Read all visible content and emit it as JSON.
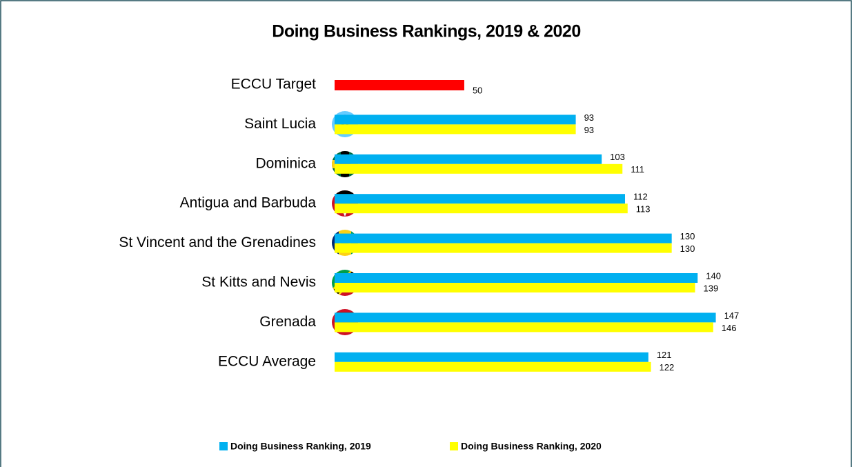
{
  "chart_data": {
    "type": "hbar",
    "title": "Doing Business Rankings, 2019 & 2020",
    "categories": [
      "ECCU Target",
      "Saint Lucia",
      "Dominica",
      "Antigua and Barbuda",
      "St Vincent and the Grenadines",
      "St Kitts and Nevis",
      "Grenada",
      "ECCU Average"
    ],
    "series": [
      {
        "name": "Doing Business Ranking, 2019",
        "color": "#00b0f0",
        "values": [
          null,
          93,
          103,
          112,
          130,
          140,
          147,
          121
        ]
      },
      {
        "name": "Doing Business Ranking, 2020",
        "color": "#ffff00",
        "values": [
          null,
          93,
          111,
          113,
          130,
          139,
          146,
          122
        ]
      }
    ],
    "target": {
      "value": 50,
      "color": "#ff0000"
    },
    "xlim": [
      0,
      195
    ],
    "legend": "bottom"
  }
}
